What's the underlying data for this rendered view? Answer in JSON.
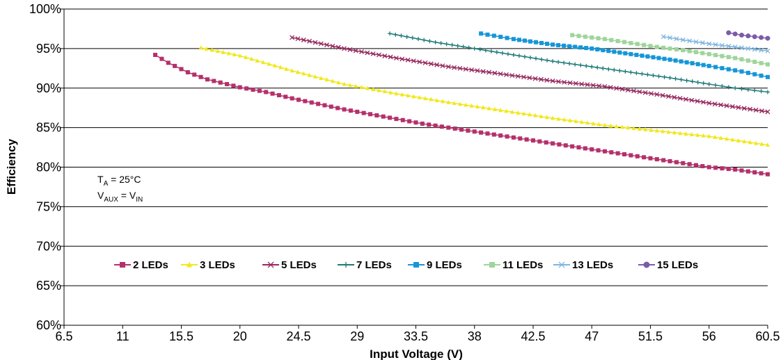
{
  "chart_data": {
    "type": "line",
    "xlabel": "Input Voltage (V)",
    "ylabel": "Efficiency",
    "xlim": [
      6.5,
      60.5
    ],
    "ylim": [
      60,
      100
    ],
    "x_ticks": [
      6.5,
      11,
      15.5,
      20,
      24.5,
      29,
      33.5,
      38,
      42.5,
      47,
      51.5,
      56,
      60.5
    ],
    "x_tick_labels": [
      "6.5",
      "11",
      "15.5",
      "20",
      "24.5",
      "29",
      "33.5",
      "38",
      "42.5",
      "47",
      "51.5",
      "56",
      "60.5"
    ],
    "y_ticks": [
      60,
      65,
      70,
      75,
      80,
      85,
      90,
      95,
      100
    ],
    "y_tick_labels": [
      "60%",
      "65%",
      "70%",
      "75%",
      "80%",
      "85%",
      "90%",
      "95%",
      "100%"
    ],
    "grid": "horizontal",
    "legend_position": "center",
    "annotations": {
      "temp_main": "T",
      "temp_sub": "A",
      "temp_rest": " = 25°C",
      "vaux_main": "V",
      "vaux_sub": "AUX",
      "vaux_eq": " = V",
      "vin_sub": "IN"
    },
    "series": [
      {
        "name": "2 LEDs",
        "color": "#b5306b",
        "marker": "square",
        "x": [
          13.5,
          14.5,
          16,
          17.5,
          19,
          20,
          22,
          24,
          26,
          28,
          30,
          32,
          34,
          36,
          38,
          40,
          42,
          44,
          46,
          48,
          50,
          52,
          54,
          56,
          58,
          60.5
        ],
        "y": [
          94.2,
          93.2,
          92.0,
          91.1,
          90.5,
          90.1,
          89.5,
          88.7,
          88.0,
          87.3,
          86.7,
          86.1,
          85.5,
          85.0,
          84.5,
          84.0,
          83.5,
          83.0,
          82.5,
          82.0,
          81.5,
          81.0,
          80.5,
          80.0,
          79.7,
          79.1
        ]
      },
      {
        "name": "3 LEDs",
        "color": "#f0e81e",
        "marker": "triangle",
        "x": [
          17,
          20,
          24,
          28,
          32,
          36,
          40,
          44,
          48,
          52,
          56,
          60.5
        ],
        "y": [
          95.1,
          94.1,
          92.2,
          90.5,
          89.3,
          88.2,
          87.2,
          86.2,
          85.3,
          84.6,
          83.9,
          82.8
        ]
      },
      {
        "name": "5 LEDs",
        "color": "#94275e",
        "marker": "x",
        "x": [
          24,
          28,
          32,
          36,
          40,
          44,
          48,
          52,
          56,
          60.5
        ],
        "y": [
          96.4,
          95.0,
          93.8,
          92.7,
          91.8,
          90.9,
          90.2,
          89.2,
          88.1,
          87.0
        ]
      },
      {
        "name": "7 LEDs",
        "color": "#1d7a78",
        "marker": "plus",
        "x": [
          31.5,
          35,
          38,
          41,
          44,
          47,
          50,
          53,
          56,
          58,
          60.5
        ],
        "y": [
          96.9,
          95.8,
          95.0,
          94.2,
          93.4,
          92.7,
          92.0,
          91.3,
          90.5,
          90.0,
          89.5
        ]
      },
      {
        "name": "9 LEDs",
        "color": "#1596d8",
        "marker": "square",
        "x": [
          38.5,
          41,
          44,
          47,
          50,
          53,
          56,
          58.5,
          60.5
        ],
        "y": [
          96.9,
          96.2,
          95.5,
          95.0,
          94.3,
          93.6,
          92.8,
          92.1,
          91.4
        ]
      },
      {
        "name": "11 LEDs",
        "color": "#9fd59b",
        "marker": "square",
        "x": [
          45.5,
          48,
          50,
          52,
          54,
          56,
          58,
          60.5
        ],
        "y": [
          96.7,
          96.2,
          95.7,
          95.2,
          94.8,
          94.3,
          93.8,
          93.0
        ]
      },
      {
        "name": "13 LEDs",
        "color": "#7db5de",
        "marker": "x",
        "x": [
          52.5,
          54,
          56,
          58,
          60.5
        ],
        "y": [
          96.5,
          96.1,
          95.6,
          95.2,
          94.7
        ]
      },
      {
        "name": "15 LEDs",
        "color": "#7b5ca8",
        "marker": "circle",
        "x": [
          57.5,
          58.5,
          59.5,
          60.5
        ],
        "y": [
          97.0,
          96.7,
          96.5,
          96.3
        ]
      }
    ]
  }
}
